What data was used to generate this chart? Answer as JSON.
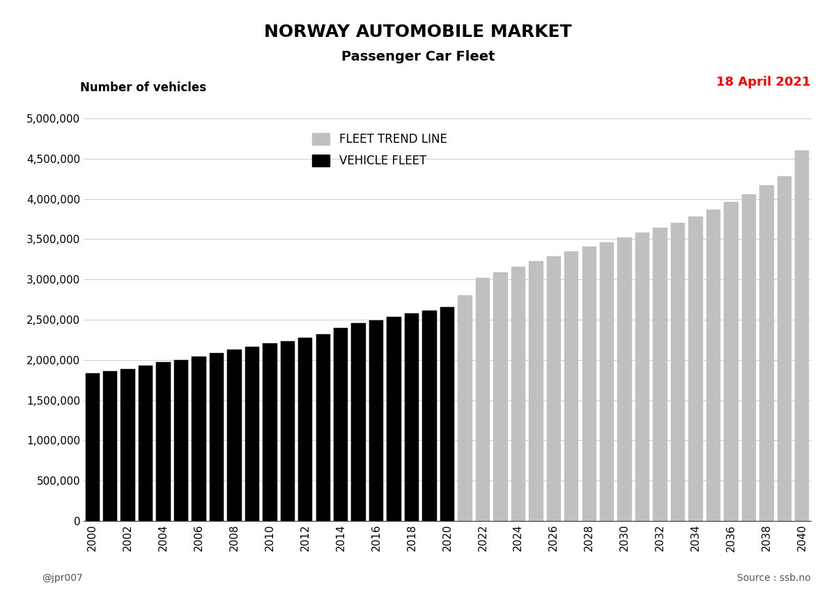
{
  "title": "NORWAY AUTOMOBILE MARKET",
  "subtitle": "Passenger Car Fleet",
  "date_label": "18 April 2021",
  "ylabel": "Number of vehicles",
  "footer_left": "@jpr007",
  "footer_right": "Source : ssb.no",
  "legend_trend": "FLEET TREND LINE",
  "legend_fleet": "VEHICLE FLEET",
  "actual_years": [
    2000,
    2001,
    2002,
    2003,
    2004,
    2005,
    2006,
    2007,
    2008,
    2009,
    2010,
    2011,
    2012,
    2013,
    2014,
    2015,
    2016,
    2017,
    2018,
    2019,
    2020
  ],
  "actual_values": [
    1830000,
    1860000,
    1890000,
    1930000,
    1970000,
    2000000,
    2040000,
    2085000,
    2125000,
    2160000,
    2205000,
    2235000,
    2275000,
    2315000,
    2400000,
    2455000,
    2495000,
    2535000,
    2575000,
    2615000,
    2660000
  ],
  "trend_years": [
    2000,
    2001,
    2002,
    2003,
    2004,
    2005,
    2006,
    2007,
    2008,
    2009,
    2010,
    2011,
    2012,
    2013,
    2014,
    2015,
    2016,
    2017,
    2018,
    2019,
    2020,
    2021,
    2022,
    2023,
    2024,
    2025,
    2026,
    2027,
    2028,
    2029,
    2030,
    2031,
    2032,
    2033,
    2034,
    2035,
    2036,
    2037,
    2038,
    2039,
    2040
  ],
  "trend_values": [
    1830000,
    1860000,
    1890000,
    1930000,
    1970000,
    2000000,
    2040000,
    2085000,
    2125000,
    2160000,
    2205000,
    2235000,
    2275000,
    2315000,
    2400000,
    2455000,
    2495000,
    2535000,
    2575000,
    2615000,
    2660000,
    2800000,
    3020000,
    3090000,
    3160000,
    3230000,
    3290000,
    3350000,
    3410000,
    3460000,
    3520000,
    3580000,
    3640000,
    3700000,
    3780000,
    3870000,
    3960000,
    4060000,
    4170000,
    4280000,
    4600000
  ],
  "bar_color_actual": "#000000",
  "bar_color_trend": "#c0c0c0",
  "background_color": "#ffffff",
  "ylim": [
    0,
    5000000
  ],
  "yticks": [
    0,
    500000,
    1000000,
    1500000,
    2000000,
    2500000,
    3000000,
    3500000,
    4000000,
    4500000,
    5000000
  ],
  "title_fontsize": 18,
  "subtitle_fontsize": 14,
  "date_color": "#ff0000"
}
